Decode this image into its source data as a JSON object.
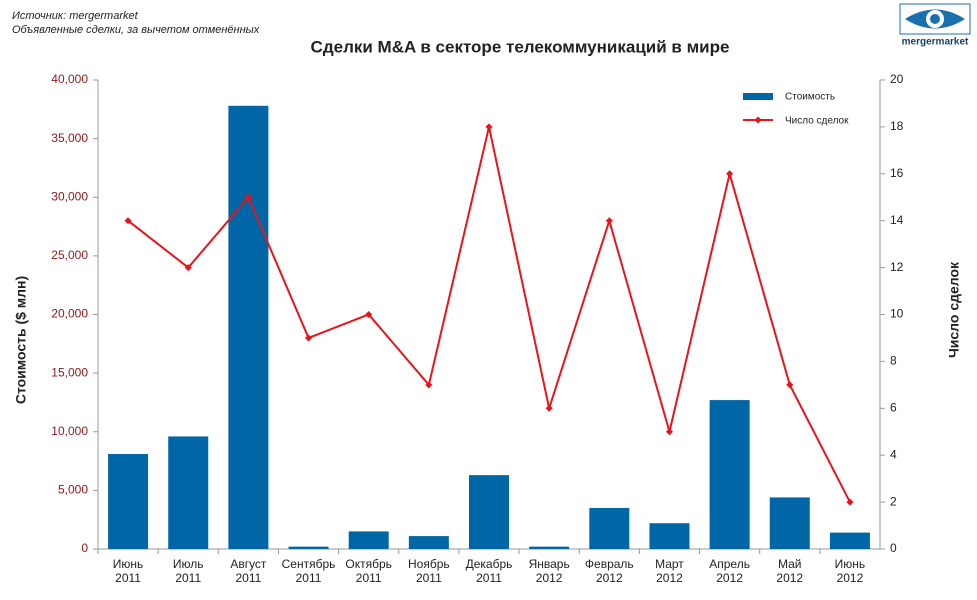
{
  "chart_data": {
    "type": "bar-line",
    "source": "Источник: mergermarket",
    "subtitle": "Объявленные сделки, за вычетом отменённых",
    "logo": "mergermarket",
    "title": "Сделки M&A в секторе телекоммуникаций в мире",
    "ylabel": "Стоимость  ($ млн)",
    "y2label": "Число сделок",
    "categories": [
      "Июнь\n2011",
      "Июль\n2011",
      "Август\n2011",
      "Сентябрь\n2011",
      "Октябрь\n2011",
      "Ноябрь\n2011",
      "Декабрь\n2011",
      "Январь\n2012",
      "Февраль\n2012",
      "Март\n2012",
      "Апрель\n2012",
      "Май\n2012",
      "Июнь\n2012"
    ],
    "series": [
      {
        "name": "Стоимость",
        "color": "#0066a6",
        "kind": "bar",
        "values": [
          8100,
          9600,
          37800,
          200,
          1500,
          1100,
          6300,
          200,
          3500,
          2200,
          12700,
          4400,
          1400
        ]
      },
      {
        "name": "Число сделок",
        "color": "#e8141b",
        "kind": "line",
        "axis": "y2",
        "values": [
          14,
          12,
          15,
          9,
          10,
          7,
          18,
          6,
          14,
          5,
          16,
          7,
          2
        ]
      }
    ],
    "ylim": [
      0,
      40000
    ],
    "yticks": [
      0,
      {
        "value": 5000,
        "label": "5,000"
      },
      {
        "value": 10000,
        "label": "10,000"
      },
      {
        "value": 15000,
        "label": "15,000"
      },
      {
        "value": 20000,
        "label": "20,000"
      },
      {
        "value": 25000,
        "label": "25,000"
      },
      {
        "value": 30000,
        "label": "30,000"
      },
      {
        "value": 35000,
        "label": "35,000"
      },
      {
        "value": 40000,
        "label": "40,000"
      }
    ],
    "y2lim": [
      0,
      20
    ],
    "y2ticks": [
      0,
      2,
      4,
      6,
      8,
      10,
      12,
      14,
      16,
      18,
      20
    ],
    "legend": "top-right"
  }
}
